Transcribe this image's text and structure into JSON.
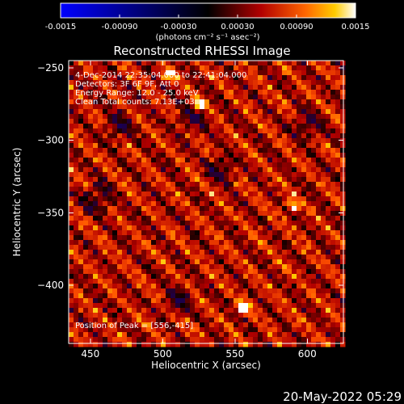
{
  "chart_data": {
    "type": "heatmap",
    "title": "Reconstructed RHESSI Image",
    "xlabel": "Heliocentric X (arcsec)",
    "ylabel": "Heliocentric Y (arcsec)",
    "xlim": [
      435,
      625
    ],
    "ylim": [
      -440,
      -245
    ],
    "xticks": [
      450,
      500,
      550,
      600
    ],
    "yticks": [
      -250,
      -300,
      -350,
      -400
    ],
    "xtick_labels": [
      "450",
      "500",
      "550",
      "600"
    ],
    "ytick_labels": [
      "-250",
      "-300",
      "-350",
      "-400"
    ],
    "colorbar": {
      "min": -0.0015,
      "max": 0.0015,
      "ticks": [
        -0.0015,
        -0.0009,
        -0.0003,
        0.0003,
        0.0009,
        0.0015
      ],
      "tick_labels": [
        "-0.0015",
        "-0.00090",
        "-0.00030",
        "0.00030",
        "0.00090",
        "0.0015"
      ],
      "units": "(photons cm-2 s-1 asec-2)"
    },
    "annotations": [
      "4-Dec-2014 22:35:04.000 to 22:41:04.000",
      "Detectors: 3F 6F 9F, Att 0",
      "Energy Range: 12.0 - 25.0 keV",
      "Clean     Total counts: 7.13E+03"
    ],
    "peak": {
      "label": "Position of Peak = [556,-415]",
      "x": 556,
      "y": -415
    },
    "secondary_peaks": [
      {
        "x": 590,
        "y": -345
      },
      {
        "x": 505,
        "y": -255
      },
      {
        "x": 525,
        "y": -275
      }
    ],
    "colors": {
      "low": "#0000ff",
      "mid": "#000000",
      "high": "#ffffff",
      "hot": "#ff3300"
    }
  },
  "footer": {
    "timestamp": "20-May-2022 05:29"
  },
  "labels": {
    "cb_units": "(photons cm⁻² s⁻¹ asec⁻²)"
  }
}
